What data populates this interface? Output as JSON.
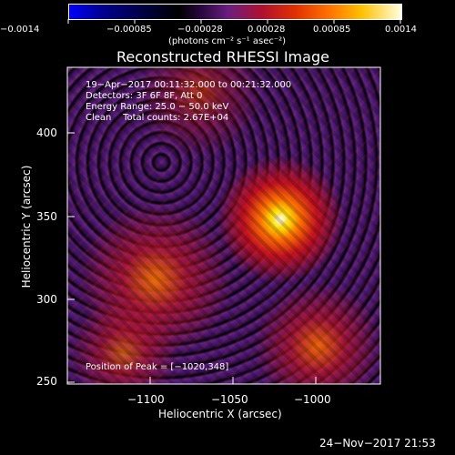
{
  "colorbar": {
    "tick_labels": [
      "−0.0014",
      "−0.00085",
      "−0.00028",
      "0.00028",
      "0.00085",
      "0.0014"
    ],
    "unit_label": "(photons cm⁻² s⁻¹ asec⁻²)"
  },
  "plot": {
    "title": "Reconstructed RHESSI Image",
    "info_lines": [
      "19−Apr−2017 00:11:32.000 to 00:21:32.000",
      "Detectors: 3F 6F 8F, Att 0",
      "Energy Range: 25.0 − 50.0 keV",
      "Clean    Total counts: 2.67E+04"
    ],
    "peak_text": "Position of Peak = [−1020,348]",
    "x_axis_label": "Heliocentric X (arcsec)",
    "y_axis_label": "Heliocentric Y (arcsec)",
    "x_tick_labels": [
      "−1100",
      "−1050",
      "−1000"
    ],
    "y_tick_labels": [
      "400",
      "350",
      "300",
      "250"
    ],
    "x_ticks": [
      -1100,
      -1050,
      -1000
    ],
    "y_ticks": [
      400,
      350,
      300,
      250
    ],
    "xlim": [
      -1150,
      -960
    ],
    "ylim": [
      245,
      435
    ],
    "peak_position": [
      -1020,
      348
    ]
  },
  "footer": {
    "timestamp": "24−Nov−2017 21:53"
  },
  "colors": {
    "background": "#000000",
    "foreground": "#ffffff",
    "colormap": [
      "#0000ff",
      "#00002a",
      "#4b1c7a",
      "#7a2a8a",
      "#c0182a",
      "#ff5a00",
      "#ffd400",
      "#ffffff"
    ]
  }
}
